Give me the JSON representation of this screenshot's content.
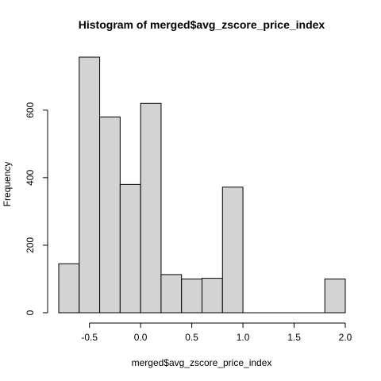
{
  "chart_data": {
    "type": "bar",
    "subtype": "histogram",
    "title": "Histogram of merged$avg_zscore_price_index",
    "xlabel": "merged$avg_zscore_price_index",
    "ylabel": "Frequency",
    "bins": [
      {
        "x0": -0.8,
        "x1": -0.6,
        "count": 145
      },
      {
        "x0": -0.6,
        "x1": -0.4,
        "count": 757
      },
      {
        "x0": -0.4,
        "x1": -0.2,
        "count": 580
      },
      {
        "x0": -0.2,
        "x1": 0.0,
        "count": 380
      },
      {
        "x0": 0.0,
        "x1": 0.2,
        "count": 620
      },
      {
        "x0": 0.2,
        "x1": 0.4,
        "count": 113
      },
      {
        "x0": 0.4,
        "x1": 0.6,
        "count": 100
      },
      {
        "x0": 0.6,
        "x1": 0.8,
        "count": 102
      },
      {
        "x0": 0.8,
        "x1": 1.0,
        "count": 372
      },
      {
        "x0": 1.0,
        "x1": 1.2,
        "count": 0
      },
      {
        "x0": 1.2,
        "x1": 1.4,
        "count": 0
      },
      {
        "x0": 1.4,
        "x1": 1.6,
        "count": 0
      },
      {
        "x0": 1.6,
        "x1": 1.8,
        "count": 0
      },
      {
        "x0": 1.8,
        "x1": 2.0,
        "count": 100
      }
    ],
    "xlim": [
      -0.8,
      2.0
    ],
    "ylim": [
      0,
      757
    ],
    "xticks": [
      -0.5,
      0.0,
      0.5,
      1.0,
      1.5,
      2.0
    ],
    "xtick_labels": [
      "-0.5",
      "0.0",
      "0.5",
      "1.0",
      "1.5",
      "2.0"
    ],
    "yticks": [
      0,
      200,
      400,
      600
    ],
    "ytick_labels": [
      "0",
      "200",
      "400",
      "600"
    ],
    "grid": false,
    "colors": {
      "bar_fill": "#d3d3d3",
      "bar_stroke": "#000000"
    }
  }
}
